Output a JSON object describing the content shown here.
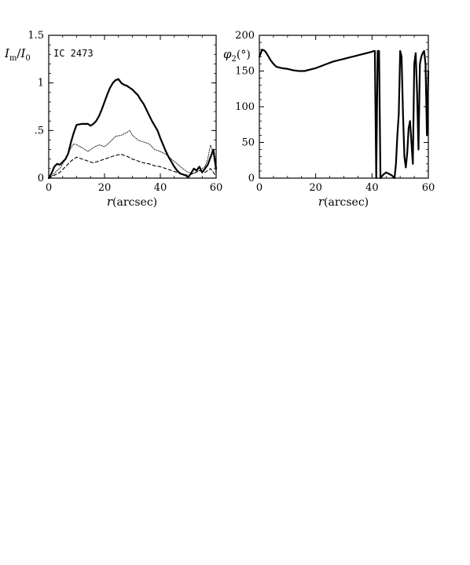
{
  "figure": {
    "annotation": "IC 2473"
  },
  "chart_data": [
    {
      "type": "line",
      "ylabel_main": "I",
      "ylabel_sub1": "m",
      "ylabel_slash": "/",
      "ylabel_main2": "I",
      "ylabel_sub2": "0",
      "xlabel_var": "r",
      "xlabel_unit": "(arcsec)",
      "xlim": [
        0,
        60
      ],
      "ylim": [
        0,
        1.5
      ],
      "xticks": [
        0,
        20,
        40,
        60
      ],
      "xtick_labels": [
        "0",
        "20",
        "40",
        "60"
      ],
      "yticks": [
        0,
        0.5,
        1,
        1.5
      ],
      "ytick_labels": [
        "0",
        ".5",
        "1",
        "1.5"
      ],
      "grid": false,
      "series": [
        {
          "style": "solid-thick",
          "x": [
            0,
            1,
            2,
            3,
            4,
            5,
            6,
            7,
            8,
            9,
            10,
            12,
            14,
            15,
            16,
            17,
            18,
            19,
            20,
            21,
            22,
            23,
            24,
            25,
            26,
            27,
            28,
            29,
            30,
            31,
            32,
            33,
            34,
            35,
            36,
            37,
            38,
            39,
            40,
            41,
            42,
            43,
            44,
            45,
            46,
            47,
            48,
            49,
            50,
            51,
            52,
            53,
            54,
            55,
            56,
            57,
            58,
            59,
            60
          ],
          "y": [
            0.0,
            0.05,
            0.12,
            0.15,
            0.14,
            0.17,
            0.2,
            0.26,
            0.38,
            0.48,
            0.56,
            0.57,
            0.57,
            0.55,
            0.57,
            0.6,
            0.65,
            0.72,
            0.8,
            0.88,
            0.95,
            1.0,
            1.03,
            1.04,
            1.0,
            0.98,
            0.97,
            0.95,
            0.93,
            0.9,
            0.87,
            0.82,
            0.78,
            0.72,
            0.66,
            0.6,
            0.55,
            0.5,
            0.42,
            0.35,
            0.28,
            0.22,
            0.17,
            0.12,
            0.08,
            0.05,
            0.04,
            0.03,
            0.01,
            0.05,
            0.1,
            0.08,
            0.12,
            0.06,
            0.1,
            0.14,
            0.22,
            0.3,
            0.1
          ]
        },
        {
          "style": "dotted",
          "x": [
            0,
            1,
            2,
            3,
            4,
            5,
            6,
            7,
            8,
            9,
            10,
            12,
            14,
            16,
            18,
            20,
            22,
            24,
            26,
            28,
            29,
            30,
            32,
            34,
            36,
            38,
            40,
            42,
            44,
            46,
            48,
            50,
            52,
            54,
            56,
            57,
            58,
            59,
            60
          ],
          "y": [
            0.0,
            0.02,
            0.05,
            0.08,
            0.1,
            0.15,
            0.2,
            0.26,
            0.32,
            0.36,
            0.35,
            0.32,
            0.28,
            0.32,
            0.35,
            0.33,
            0.38,
            0.44,
            0.45,
            0.48,
            0.5,
            0.45,
            0.4,
            0.38,
            0.36,
            0.3,
            0.28,
            0.25,
            0.2,
            0.15,
            0.1,
            0.06,
            0.05,
            0.08,
            0.12,
            0.2,
            0.35,
            0.25,
            0.05
          ]
        },
        {
          "style": "dashed",
          "x": [
            0,
            2,
            4,
            6,
            8,
            10,
            12,
            14,
            16,
            18,
            20,
            22,
            24,
            26,
            28,
            30,
            32,
            34,
            36,
            38,
            40,
            42,
            44,
            46,
            48,
            50,
            52,
            54,
            56,
            58,
            60
          ],
          "y": [
            0.0,
            0.03,
            0.06,
            0.12,
            0.18,
            0.22,
            0.2,
            0.18,
            0.16,
            0.18,
            0.2,
            0.22,
            0.24,
            0.25,
            0.23,
            0.2,
            0.18,
            0.16,
            0.15,
            0.13,
            0.12,
            0.1,
            0.08,
            0.06,
            0.04,
            0.03,
            0.05,
            0.08,
            0.06,
            0.1,
            0.02
          ]
        }
      ]
    },
    {
      "type": "line",
      "ylabel_main": "φ",
      "ylabel_sub1": "2",
      "ylabel_unit": "(°)",
      "xlabel_var": "r",
      "xlabel_unit": "(arcsec)",
      "xlim": [
        0,
        60
      ],
      "ylim": [
        0,
        200
      ],
      "xticks": [
        0,
        20,
        40,
        60
      ],
      "xtick_labels": [
        "0",
        "20",
        "40",
        "60"
      ],
      "yticks": [
        0,
        50,
        100,
        150,
        200
      ],
      "ytick_labels": [
        "0",
        "50",
        "100",
        "150",
        "200"
      ],
      "grid": false,
      "series": [
        {
          "style": "solid-thick",
          "x": [
            0,
            1,
            2,
            3,
            4,
            5,
            6,
            8,
            10,
            12,
            14,
            16,
            18,
            20,
            22,
            24,
            26,
            28,
            30,
            32,
            34,
            36,
            38,
            40,
            40.5,
            41,
            41.5,
            42,
            42.5,
            43,
            44,
            45,
            46,
            47,
            48,
            48.5,
            49,
            49.5,
            50,
            50.5,
            51,
            51.5,
            52,
            52.5,
            53,
            53.5,
            54,
            54.5,
            55,
            55.5,
            56,
            56.5,
            57,
            57.5,
            58,
            58.5,
            59,
            59.5,
            60
          ],
          "y": [
            170,
            180,
            178,
            172,
            165,
            160,
            156,
            154,
            153,
            151,
            150,
            150,
            152,
            154,
            157,
            160,
            163,
            165,
            167,
            169,
            171,
            173,
            175,
            177,
            178,
            178,
            0,
            178,
            178,
            0,
            5,
            8,
            6,
            4,
            0,
            20,
            60,
            90,
            178,
            170,
            90,
            30,
            15,
            35,
            70,
            80,
            50,
            20,
            160,
            175,
            120,
            40,
            160,
            170,
            175,
            178,
            160,
            60,
            150
          ]
        }
      ]
    }
  ]
}
